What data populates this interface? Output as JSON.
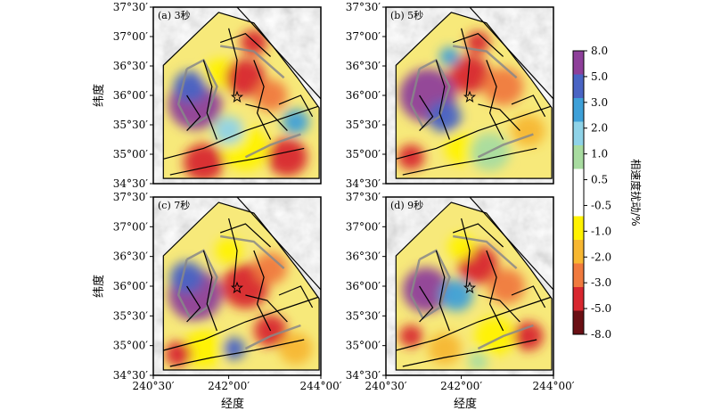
{
  "panels": [
    {
      "id": "a",
      "title": "(a) 3秒",
      "x_ticks": [],
      "x_axis_label": "",
      "y_ticks": [
        "37°30′",
        "37°00′",
        "36°30′",
        "36°00′",
        "35°30′",
        "35°00′",
        "34°30′"
      ],
      "y_axis_label": "纬度"
    },
    {
      "id": "b",
      "title": "(b) 5秒",
      "x_ticks": [],
      "x_axis_label": "",
      "y_ticks": [
        "37°30′",
        "37°00′",
        "36°30′",
        "36°00′",
        "35°30′",
        "35°00′",
        "34°30′"
      ],
      "y_axis_label": ""
    },
    {
      "id": "c",
      "title": "(c) 7秒",
      "x_ticks": [
        "240°30′",
        "242°00′",
        "244°00′"
      ],
      "x_axis_label": "经度",
      "y_ticks": [
        "37°30′",
        "37°00′",
        "36°30′",
        "36°00′",
        "35°30′",
        "35°00′",
        "34°30′"
      ],
      "y_axis_label": "纬度"
    },
    {
      "id": "d",
      "title": "(d) 9秒",
      "x_ticks": [
        "240°30′",
        "242°00′",
        "244°00′"
      ],
      "x_axis_label": "经度",
      "y_ticks": [
        "37°30′",
        "37°00′",
        "36°30′",
        "36°00′",
        "35°30′",
        "35°00′",
        "34°30′"
      ],
      "y_axis_label": ""
    }
  ],
  "colorbar": {
    "title": "相速度扰动/%",
    "ticks": [
      "8.0",
      "5.0",
      "3.0",
      "2.0",
      "1.0",
      "0.5",
      "-0.5",
      "-1.0",
      "-2.0",
      "-3.0",
      "-5.0",
      "-8.0"
    ],
    "colors": [
      "#8e3f9a",
      "#4a64c4",
      "#3ea0d8",
      "#8fd3e8",
      "#a8dca0",
      "#ffffff",
      "#ffffff",
      "#fff200",
      "#f7b731",
      "#f07a3e",
      "#d8272f",
      "#6a0f14"
    ]
  },
  "marker": {
    "label": "star",
    "icon": "star-icon"
  },
  "palette": {
    "relief": "#c8c8c8",
    "fault_lines": "#000000",
    "contours": "#888888"
  }
}
